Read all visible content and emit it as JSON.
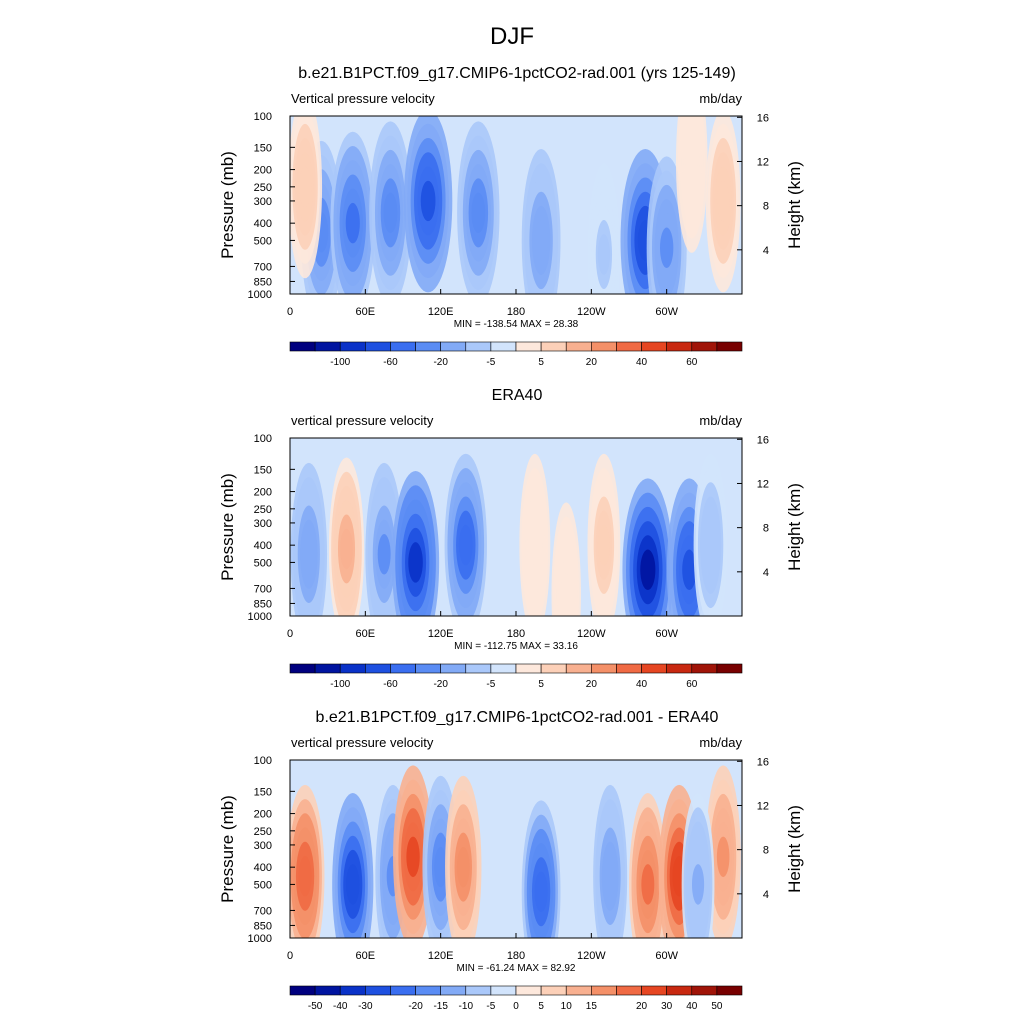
{
  "figure_title": "DJF",
  "chart_data": [
    {
      "type": "heatmap",
      "title": "b.e21.B1PCT.f09_g17.CMIP6-1pctCO2-rad.001 (yrs 125-149)",
      "left_label": "Vertical pressure velocity",
      "right_label": "mb/day",
      "ylabel": "Pressure (mb)",
      "ylabel_right": "Height (km)",
      "x_ticks": [
        "0",
        "60E",
        "120E",
        "180",
        "120W",
        "60W"
      ],
      "x_tick_lon": [
        0,
        60,
        120,
        180,
        240,
        300
      ],
      "xlim": [
        0,
        360
      ],
      "y_ticks": [
        "100",
        "150",
        "200",
        "250",
        "300",
        "400",
        "500",
        "700",
        "850",
        "1000"
      ],
      "y_tick_p": [
        100,
        150,
        200,
        250,
        300,
        400,
        500,
        700,
        850,
        1000
      ],
      "ylim": [
        1000,
        100
      ],
      "y_scale": "log",
      "height_ticks": [
        "4",
        "8",
        "12",
        "16"
      ],
      "height_tick_km": [
        4,
        8,
        12,
        16
      ],
      "minmax_text": "MIN = -138.54  MAX =  28.38",
      "min": -138.54,
      "max": 28.38,
      "colorbar_labels": [
        "-100",
        "-60",
        "-20",
        "-5",
        "5",
        "20",
        "40",
        "60"
      ],
      "colorbar_colors": [
        "#00007f",
        "#0014a0",
        "#0a32c8",
        "#1e50e0",
        "#3a6ef0",
        "#5a8cf4",
        "#82aaf6",
        "#aac8fa",
        "#d2e4fc",
        "#fde8dc",
        "#fcd0b8",
        "#f8b090",
        "#f49068",
        "#f06a44",
        "#e64622",
        "#c82810",
        "#a01408",
        "#780000"
      ],
      "features": [
        {
          "lon": 25,
          "p": 450,
          "value": -55
        },
        {
          "lon": 50,
          "p": 400,
          "value": -70
        },
        {
          "lon": 80,
          "p": 350,
          "value": -60
        },
        {
          "lon": 110,
          "p": 300,
          "value": -85
        },
        {
          "lon": 150,
          "p": 350,
          "value": -60
        },
        {
          "lon": 200,
          "p": 500,
          "value": -45
        },
        {
          "lon": 250,
          "p": 600,
          "value": -20
        },
        {
          "lon": 283,
          "p": 500,
          "value": -90
        },
        {
          "lon": 300,
          "p": 550,
          "value": -50
        },
        {
          "lon": 12,
          "p": 250,
          "value": 25
        },
        {
          "lon": 345,
          "p": 300,
          "value": 28
        },
        {
          "lon": 320,
          "p": 180,
          "value": 15
        }
      ]
    },
    {
      "type": "heatmap",
      "title": "ERA40",
      "left_label": "vertical pressure velocity",
      "right_label": "mb/day",
      "ylabel": "Pressure (mb)",
      "ylabel_right": "Height (km)",
      "x_ticks": [
        "0",
        "60E",
        "120E",
        "180",
        "120W",
        "60W"
      ],
      "x_tick_lon": [
        0,
        60,
        120,
        180,
        240,
        300
      ],
      "xlim": [
        0,
        360
      ],
      "y_ticks": [
        "100",
        "150",
        "200",
        "250",
        "300",
        "400",
        "500",
        "700",
        "850",
        "1000"
      ],
      "y_tick_p": [
        100,
        150,
        200,
        250,
        300,
        400,
        500,
        700,
        850,
        1000
      ],
      "ylim": [
        1000,
        100
      ],
      "y_scale": "log",
      "height_ticks": [
        "4",
        "8",
        "12",
        "16"
      ],
      "height_tick_km": [
        4,
        8,
        12,
        16
      ],
      "minmax_text": "MIN = -112.75  MAX =  33.16",
      "min": -112.75,
      "max": 33.16,
      "colorbar_labels": [
        "-100",
        "-60",
        "-20",
        "-5",
        "5",
        "20",
        "40",
        "60"
      ],
      "colorbar_colors": [
        "#00007f",
        "#0014a0",
        "#0a32c8",
        "#1e50e0",
        "#3a6ef0",
        "#5a8cf4",
        "#82aaf6",
        "#aac8fa",
        "#d2e4fc",
        "#fde8dc",
        "#fcd0b8",
        "#f8b090",
        "#f49068",
        "#f06a44",
        "#e64622",
        "#c82810",
        "#a01408",
        "#780000"
      ],
      "features": [
        {
          "lon": 15,
          "p": 450,
          "value": -35
        },
        {
          "lon": 45,
          "p": 420,
          "value": 30
        },
        {
          "lon": 75,
          "p": 450,
          "value": -40
        },
        {
          "lon": 100,
          "p": 500,
          "value": -80
        },
        {
          "lon": 140,
          "p": 400,
          "value": -60
        },
        {
          "lon": 195,
          "p": 400,
          "value": 12
        },
        {
          "lon": 250,
          "p": 400,
          "value": 20
        },
        {
          "lon": 285,
          "p": 550,
          "value": -95
        },
        {
          "lon": 318,
          "p": 550,
          "value": -70
        },
        {
          "lon": 335,
          "p": 400,
          "value": -25
        },
        {
          "lon": 220,
          "p": 750,
          "value": 6
        }
      ]
    },
    {
      "type": "heatmap",
      "title": "b.e21.B1PCT.f09_g17.CMIP6-1pctCO2-rad.001 - ERA40",
      "left_label": "vertical pressure velocity",
      "right_label": "mb/day",
      "ylabel": "Pressure (mb)",
      "ylabel_right": "Height (km)",
      "x_ticks": [
        "0",
        "60E",
        "120E",
        "180",
        "120W",
        "60W"
      ],
      "x_tick_lon": [
        0,
        60,
        120,
        180,
        240,
        300
      ],
      "xlim": [
        0,
        360
      ],
      "y_ticks": [
        "100",
        "150",
        "200",
        "250",
        "300",
        "400",
        "500",
        "700",
        "850",
        "1000"
      ],
      "y_tick_p": [
        100,
        150,
        200,
        250,
        300,
        400,
        500,
        700,
        850,
        1000
      ],
      "ylim": [
        1000,
        100
      ],
      "y_scale": "log",
      "height_ticks": [
        "4",
        "8",
        "12",
        "16"
      ],
      "height_tick_km": [
        4,
        8,
        12,
        16
      ],
      "minmax_text": "MIN = -61.24  MAX =  82.92",
      "min": -61.24,
      "max": 82.92,
      "colorbar_labels": [
        "-50",
        "-40",
        "-30",
        "-20",
        "-15",
        "-10",
        "-5",
        "0",
        "5",
        "10",
        "15",
        "20",
        "30",
        "40",
        "50"
      ],
      "colorbar_colors": [
        "#00007f",
        "#0014a0",
        "#0a32c8",
        "#1e50e0",
        "#3a6ef0",
        "#5a8cf4",
        "#82aaf6",
        "#aac8fa",
        "#d2e4fc",
        "#fde8dc",
        "#fcd0b8",
        "#f8b090",
        "#f49068",
        "#f06a44",
        "#e64622",
        "#c82810",
        "#a01408",
        "#780000"
      ],
      "features": [
        {
          "lon": 12,
          "p": 450,
          "value": 45
        },
        {
          "lon": 50,
          "p": 500,
          "value": -55
        },
        {
          "lon": 82,
          "p": 450,
          "value": -30
        },
        {
          "lon": 98,
          "p": 350,
          "value": 50
        },
        {
          "lon": 120,
          "p": 400,
          "value": -35
        },
        {
          "lon": 138,
          "p": 400,
          "value": 35
        },
        {
          "lon": 200,
          "p": 550,
          "value": -45
        },
        {
          "lon": 255,
          "p": 450,
          "value": -25
        },
        {
          "lon": 285,
          "p": 500,
          "value": 40
        },
        {
          "lon": 310,
          "p": 450,
          "value": 55
        },
        {
          "lon": 345,
          "p": 350,
          "value": 30
        },
        {
          "lon": 325,
          "p": 500,
          "value": -20
        }
      ]
    }
  ]
}
